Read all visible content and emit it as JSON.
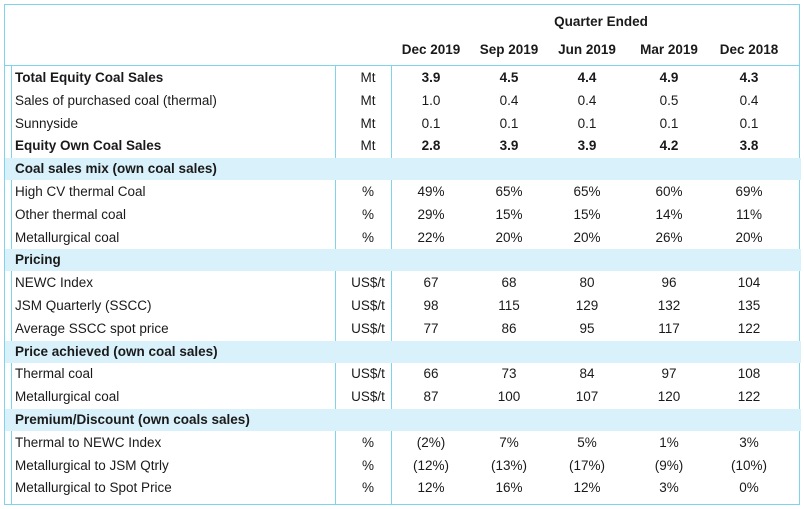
{
  "header": {
    "quarter_ended": "Quarter Ended",
    "columns": [
      "Dec 2019",
      "Sep 2019",
      "Jun 2019",
      "Mar 2019",
      "Dec 2018"
    ]
  },
  "rows": [
    {
      "label": "Total Equity Coal Sales",
      "unit": "Mt",
      "values": [
        "3.9",
        "4.5",
        "4.4",
        "4.9",
        "4.3"
      ],
      "bold": true
    },
    {
      "label": "Sales of purchased coal (thermal)",
      "unit": "Mt",
      "values": [
        "1.0",
        "0.4",
        "0.4",
        "0.5",
        "0.4"
      ]
    },
    {
      "label": "Sunnyside",
      "unit": "Mt",
      "values": [
        "0.1",
        "0.1",
        "0.1",
        "0.1",
        "0.1"
      ]
    },
    {
      "label": "Equity Own Coal Sales",
      "unit": "Mt",
      "values": [
        "2.8",
        "3.9",
        "3.9",
        "4.2",
        "3.8"
      ],
      "bold": true
    },
    {
      "label": "Coal sales mix (own coal sales)",
      "section": true
    },
    {
      "label": "High CV thermal Coal",
      "unit": "%",
      "values": [
        "49%",
        "65%",
        "65%",
        "60%",
        "69%"
      ]
    },
    {
      "label": "Other thermal coal",
      "unit": "%",
      "values": [
        "29%",
        "15%",
        "15%",
        "14%",
        "11%"
      ]
    },
    {
      "label": "Metallurgical coal",
      "unit": "%",
      "values": [
        "22%",
        "20%",
        "20%",
        "26%",
        "20%"
      ]
    },
    {
      "label": "Pricing",
      "section": true
    },
    {
      "label": "NEWC Index",
      "unit": "US$/t",
      "values": [
        "67",
        "68",
        "80",
        "96",
        "104"
      ]
    },
    {
      "label": "JSM Quarterly (SSCC)",
      "unit": "US$/t",
      "values": [
        "98",
        "115",
        "129",
        "132",
        "135"
      ]
    },
    {
      "label": "Average SSCC spot price",
      "unit": "US$/t",
      "values": [
        "77",
        "86",
        "95",
        "117",
        "122"
      ]
    },
    {
      "label": "Price achieved (own coal sales)",
      "section": true
    },
    {
      "label": "Thermal coal",
      "unit": "US$/t",
      "values": [
        "66",
        "73",
        "84",
        "97",
        "108"
      ]
    },
    {
      "label": "Metallurgical coal",
      "unit": "US$/t",
      "values": [
        "87",
        "100",
        "107",
        "120",
        "122"
      ]
    },
    {
      "label": "Premium/Discount (own coals sales)",
      "section": true
    },
    {
      "label": "Thermal to NEWC Index",
      "unit": "%",
      "values": [
        "(2%)",
        "7%",
        "5%",
        "1%",
        "3%"
      ]
    },
    {
      "label": "Metallurgical to JSM Qtrly",
      "unit": "%",
      "values": [
        "(12%)",
        "(13%)",
        "(17%)",
        "(9%)",
        "(10%)"
      ]
    },
    {
      "label": "Metallurgical to Spot Price",
      "unit": "%",
      "values": [
        "12%",
        "16%",
        "12%",
        "3%",
        "0%"
      ]
    }
  ]
}
